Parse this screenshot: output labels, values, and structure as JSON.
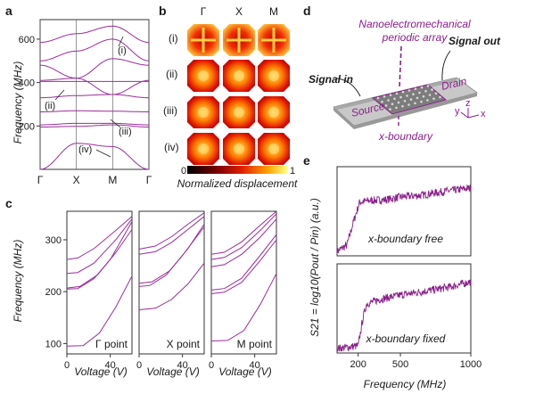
{
  "panel_labels": {
    "a": "a",
    "b": "b",
    "c": "c",
    "d": "d",
    "e": "e"
  },
  "colors": {
    "curve": "#9b2d9b",
    "accent": "#8a1f8a"
  },
  "chart_data": [
    {
      "id": "a",
      "type": "line",
      "title": "",
      "xlabel": "",
      "ylabel": "Frequency (MHz)",
      "xticks": [
        "Γ",
        "X",
        "M",
        "Γ"
      ],
      "yticks": [
        200,
        400,
        600
      ],
      "ylim": [
        0,
        690
      ],
      "annotations": [
        "(i)",
        "(ii)",
        "(iii)",
        "(iv)"
      ],
      "x": [
        0,
        1,
        2,
        3
      ],
      "series": [
        {
          "name": "band1",
          "values": [
            0,
            120,
            105,
            0
          ]
        },
        {
          "name": "band2",
          "values": [
            195,
            198,
            205,
            195
          ]
        },
        {
          "name": "band3",
          "values": [
            205,
            212,
            212,
            205
          ]
        },
        {
          "name": "band4",
          "values": [
            265,
            270,
            268,
            265
          ]
        },
        {
          "name": "band5",
          "values": [
            330,
            340,
            345,
            330
          ]
        },
        {
          "name": "band6",
          "values": [
            405,
            405,
            405,
            405
          ]
        },
        {
          "name": "band7",
          "values": [
            410,
            420,
            345,
            410
          ]
        },
        {
          "name": "band8",
          "values": [
            480,
            420,
            510,
            480
          ]
        },
        {
          "name": "band9",
          "values": [
            500,
            545,
            600,
            500
          ]
        },
        {
          "name": "band10",
          "values": [
            585,
            625,
            660,
            585
          ]
        }
      ]
    },
    {
      "id": "b",
      "type": "heatmap",
      "columns": [
        "Γ",
        "X",
        "M"
      ],
      "rows": [
        "(i)",
        "(ii)",
        "(iii)",
        "(iv)"
      ],
      "colorbar": {
        "min": "0",
        "max": "1",
        "label": "Normalized displacement"
      }
    },
    {
      "id": "c",
      "type": "line",
      "ylabel": "Frequency (MHz)",
      "xlabel": "Voltage (V)",
      "xlim": [
        0,
        60
      ],
      "xticks": [
        0,
        40
      ],
      "ylim": [
        80,
        355
      ],
      "yticks": [
        100,
        200,
        300
      ],
      "subplots": [
        {
          "label": "Γ point",
          "series": [
            {
              "name": "m1",
              "values": [
                [
                  0,
                  95
                ],
                [
                  15,
                  96
                ],
                [
                  30,
                  120
                ],
                [
                  45,
                  170
                ],
                [
                  60,
                  230
                ]
              ]
            },
            {
              "name": "m2",
              "values": [
                [
                  0,
                  205
                ],
                [
                  10,
                  206
                ],
                [
                  25,
                  225
                ],
                [
                  40,
                  262
                ],
                [
                  60,
                  335
                ]
              ]
            },
            {
              "name": "m3",
              "values": [
                [
                  0,
                  207
                ],
                [
                  12,
                  210
                ],
                [
                  28,
                  232
                ],
                [
                  45,
                  275
                ],
                [
                  60,
                  320
                ]
              ]
            },
            {
              "name": "m4",
              "values": [
                [
                  0,
                  235
                ],
                [
                  10,
                  237
                ],
                [
                  25,
                  255
                ],
                [
                  45,
                  300
                ],
                [
                  60,
                  340
                ]
              ]
            },
            {
              "name": "m5",
              "values": [
                [
                  0,
                  262
                ],
                [
                  10,
                  265
                ],
                [
                  25,
                  283
                ],
                [
                  45,
                  318
                ],
                [
                  60,
                  345
                ]
              ]
            }
          ]
        },
        {
          "label": "X point",
          "series": [
            {
              "name": "m1",
              "values": [
                [
                  0,
                  165
                ],
                [
                  15,
                  168
                ],
                [
                  30,
                  185
                ],
                [
                  45,
                  215
                ],
                [
                  60,
                  255
                ]
              ]
            },
            {
              "name": "m2",
              "values": [
                [
                  0,
                  210
                ],
                [
                  10,
                  212
                ],
                [
                  25,
                  232
                ],
                [
                  40,
                  270
                ],
                [
                  60,
                  325
                ]
              ]
            },
            {
              "name": "m3",
              "values": [
                [
                  0,
                  216
                ],
                [
                  12,
                  219
                ],
                [
                  28,
                  240
                ],
                [
                  45,
                  283
                ],
                [
                  60,
                  330
                ]
              ]
            },
            {
              "name": "m4",
              "values": [
                [
                  0,
                  272
                ],
                [
                  15,
                  277
                ],
                [
                  30,
                  295
                ],
                [
                  45,
                  320
                ],
                [
                  60,
                  345
                ]
              ]
            },
            {
              "name": "m5",
              "values": [
                [
                  0,
                  282
                ],
                [
                  15,
                  288
                ],
                [
                  30,
                  306
                ],
                [
                  45,
                  330
                ],
                [
                  60,
                  352
                ]
              ]
            }
          ]
        },
        {
          "label": "M point",
          "series": [
            {
              "name": "m1",
              "values": [
                [
                  0,
                  105
                ],
                [
                  15,
                  106
                ],
                [
                  30,
                  125
                ],
                [
                  45,
                  175
                ],
                [
                  60,
                  235
                ]
              ]
            },
            {
              "name": "m2",
              "values": [
                [
                  0,
                  196
                ],
                [
                  12,
                  199
                ],
                [
                  28,
                  218
                ],
                [
                  45,
                  260
                ],
                [
                  60,
                  300
                ]
              ]
            },
            {
              "name": "m3",
              "values": [
                [
                  0,
                  203
                ],
                [
                  12,
                  206
                ],
                [
                  28,
                  226
                ],
                [
                  45,
                  270
                ],
                [
                  60,
                  310
                ]
              ]
            },
            {
              "name": "m4",
              "values": [
                [
                  0,
                  248
                ],
                [
                  12,
                  252
                ],
                [
                  28,
                  272
                ],
                [
                  45,
                  305
                ],
                [
                  60,
                  340
                ]
              ]
            },
            {
              "name": "m5",
              "values": [
                [
                  0,
                  262
                ],
                [
                  12,
                  266
                ],
                [
                  28,
                  285
                ],
                [
                  45,
                  318
                ],
                [
                  60,
                  350
                ]
              ]
            },
            {
              "name": "m6",
              "values": [
                [
                  0,
                  272
                ],
                [
                  12,
                  276
                ],
                [
                  28,
                  296
                ],
                [
                  45,
                  328
                ],
                [
                  60,
                  355
                ]
              ]
            }
          ]
        }
      ]
    },
    {
      "id": "d",
      "type": "diagram",
      "labels": {
        "array": "Nanoelectromechanical periodic array",
        "signal_in": "Signal in",
        "signal_out": "Signal out",
        "source": "Source",
        "drain": "Drain",
        "boundary": "x-boundary",
        "axis_x": "x",
        "axis_y": "y",
        "axis_z": "z"
      }
    },
    {
      "id": "e",
      "type": "line",
      "ylabel": "S21 = log10(Pout / Pin) (a.u.)",
      "xlabel": "Frequency (MHz)",
      "xlim": [
        50,
        1000
      ],
      "xticks": [
        200,
        500,
        1000
      ],
      "subplots": [
        {
          "label": "x-boundary free",
          "envelope": [
            [
              50,
              0.05
            ],
            [
              120,
              0.12
            ],
            [
              170,
              0.4
            ],
            [
              210,
              0.6
            ],
            [
              280,
              0.62
            ],
            [
              400,
              0.63
            ],
            [
              500,
              0.66
            ],
            [
              650,
              0.68
            ],
            [
              800,
              0.72
            ],
            [
              1000,
              0.76
            ]
          ]
        },
        {
          "label": "x-boundary fixed",
          "envelope": [
            [
              50,
              0.05
            ],
            [
              200,
              0.08
            ],
            [
              235,
              0.4
            ],
            [
              260,
              0.55
            ],
            [
              350,
              0.6
            ],
            [
              500,
              0.65
            ],
            [
              700,
              0.7
            ],
            [
              850,
              0.74
            ],
            [
              1000,
              0.8
            ]
          ]
        }
      ]
    }
  ]
}
